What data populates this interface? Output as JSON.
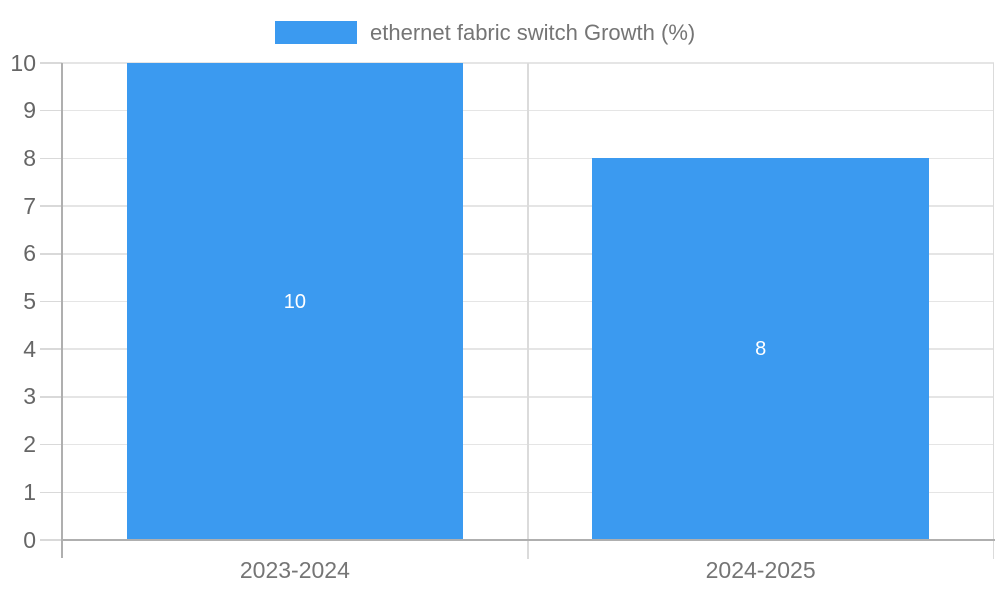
{
  "chart_data": {
    "type": "bar",
    "title": "",
    "legend_label": "ethernet fabric switch Growth (%)",
    "legend_position": "top",
    "categories": [
      "2023-2024",
      "2024-2025"
    ],
    "values": [
      10,
      8
    ],
    "data_labels": [
      "10",
      "8"
    ],
    "xlabel": "",
    "ylabel": "",
    "ylim": [
      0,
      10
    ],
    "y_ticks": [
      0,
      1,
      2,
      3,
      4,
      5,
      6,
      7,
      8,
      9,
      10
    ],
    "grid": true
  },
  "colors": {
    "bar": "#3B9AF0",
    "grid_line": "#E5E5E5",
    "grid_line_vertical": "#DBDBDB",
    "tick_mark": "#D9D9D9",
    "axis_line": "#AFAFAF",
    "tick_text": "#666666",
    "category_text": "#757575",
    "legend_text": "#757575",
    "bar_label_text": "#FFFFFF",
    "background": "#FFFFFF"
  }
}
